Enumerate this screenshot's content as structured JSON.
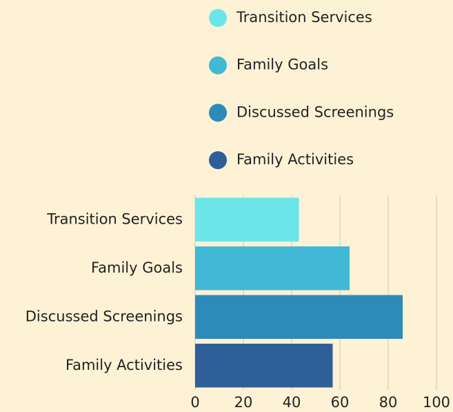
{
  "chart_data": {
    "type": "barh",
    "categories": [
      "Transition Services",
      "Family Goals",
      "Discussed Screenings",
      "Family Activities"
    ],
    "values": [
      43,
      64,
      86,
      57
    ],
    "colors": [
      "#6ce5e8",
      "#41b8d5",
      "#2d8bba",
      "#2f5f98"
    ],
    "xlim": [
      0,
      100
    ],
    "xticks": [
      0,
      20,
      40,
      60,
      80,
      100
    ],
    "grid": true
  }
}
